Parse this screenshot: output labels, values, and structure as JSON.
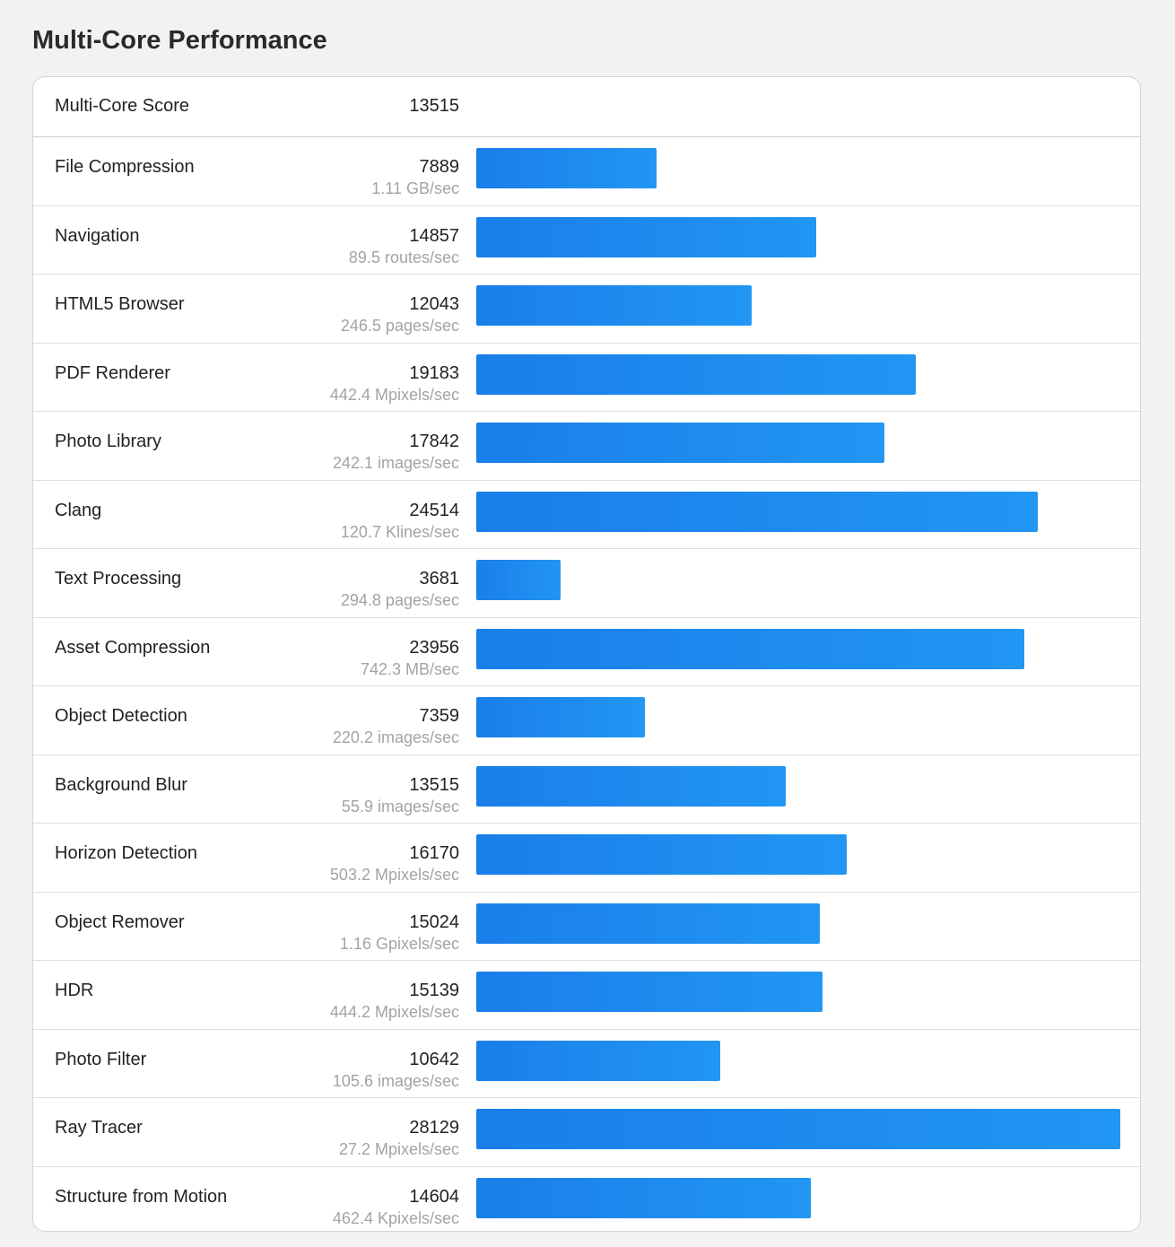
{
  "page": {
    "title": "Multi-Core Performance"
  },
  "summary": {
    "label": "Multi-Core Score",
    "score": "13515"
  },
  "colors": {
    "bar_start": "#1a7ee9",
    "bar_end": "#2196f3",
    "background": "#f2f2f2",
    "card": "#ffffff",
    "rate_text": "#a3a3a3"
  },
  "chart_data": {
    "type": "bar",
    "orientation": "horizontal",
    "title": "Multi-Core Performance",
    "summary": {
      "label": "Multi-Core Score",
      "value": 13515
    },
    "categories": [
      "File Compression",
      "Navigation",
      "HTML5 Browser",
      "PDF Renderer",
      "Photo Library",
      "Clang",
      "Text Processing",
      "Asset Compression",
      "Object Detection",
      "Background Blur",
      "Horizon Detection",
      "Object Remover",
      "HDR",
      "Photo Filter",
      "Ray Tracer",
      "Structure from Motion"
    ],
    "values": [
      7889,
      14857,
      12043,
      19183,
      17842,
      24514,
      3681,
      23956,
      7359,
      13515,
      16170,
      15024,
      15139,
      10642,
      28129,
      14604
    ],
    "rates": [
      "1.11 GB/sec",
      "89.5 routes/sec",
      "246.5 pages/sec",
      "442.4 Mpixels/sec",
      "242.1 images/sec",
      "120.7 Klines/sec",
      "294.8 pages/sec",
      "742.3 MB/sec",
      "220.2 images/sec",
      "55.9 images/sec",
      "503.2 Mpixels/sec",
      "1.16 Gpixels/sec",
      "444.2 Mpixels/sec",
      "105.6 images/sec",
      "27.2 Mpixels/sec",
      "462.4 Kpixels/sec"
    ],
    "xlim": [
      0,
      28129
    ],
    "grid": false,
    "legend": "none"
  }
}
